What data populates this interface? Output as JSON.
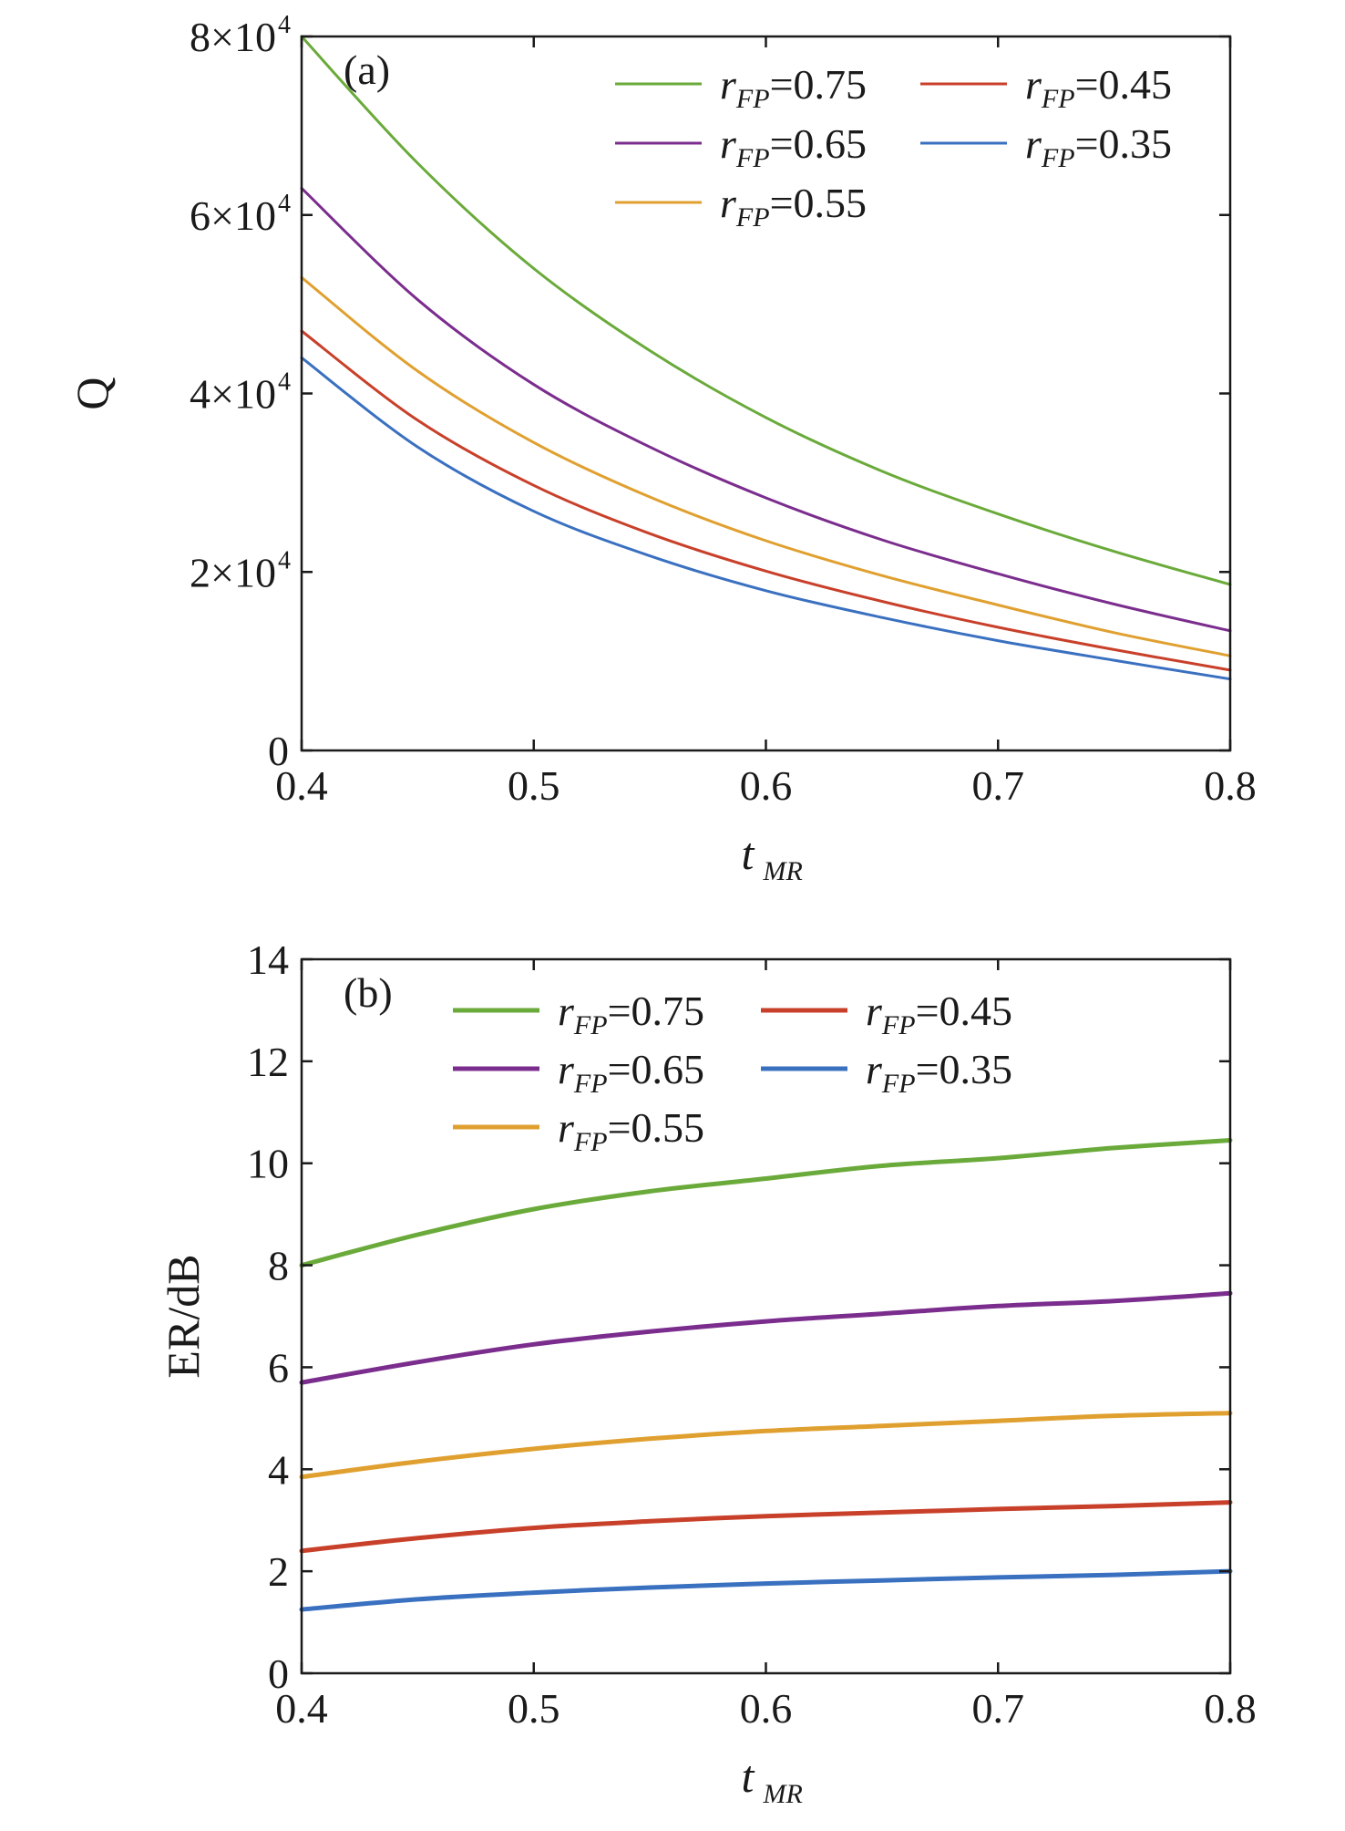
{
  "chart_data": [
    {
      "type": "line",
      "panel_label": "(a)",
      "xlabel": "t",
      "xlabel_sub": "MR",
      "ylabel": "Q",
      "xlim": [
        0.4,
        0.8
      ],
      "ylim": [
        0,
        80000
      ],
      "grid": false,
      "legend_position": "top-right",
      "x_ticks": [
        {
          "value": 0.4,
          "label": "0.4"
        },
        {
          "value": 0.5,
          "label": "0.5"
        },
        {
          "value": 0.6,
          "label": "0.6"
        },
        {
          "value": 0.7,
          "label": "0.7"
        },
        {
          "value": 0.8,
          "label": "0.8"
        }
      ],
      "y_ticks": [
        {
          "value": 0,
          "label": "0",
          "exp": ""
        },
        {
          "value": 20000,
          "label": "2×10",
          "exp": "4"
        },
        {
          "value": 40000,
          "label": "4×10",
          "exp": "4"
        },
        {
          "value": 60000,
          "label": "6×10",
          "exp": "4"
        },
        {
          "value": 80000,
          "label": "8×10",
          "exp": "4"
        }
      ],
      "x": [
        0.4,
        0.45,
        0.5,
        0.55,
        0.6,
        0.65,
        0.7,
        0.75,
        0.8
      ],
      "series": [
        {
          "name": "r",
          "name_sub": "FP",
          "name_value": "=0.75",
          "color": "#6aaa3a",
          "values": [
            80000,
            65800,
            54000,
            44800,
            37300,
            31300,
            26500,
            22300,
            18600
          ]
        },
        {
          "name": "r",
          "name_sub": "FP",
          "name_value": "=0.65",
          "color": "#7b2d8e",
          "values": [
            63000,
            50500,
            41000,
            34000,
            28300,
            23600,
            19800,
            16400,
            13400
          ]
        },
        {
          "name": "r",
          "name_sub": "FP",
          "name_value": "=0.55",
          "color": "#e0a030",
          "values": [
            53000,
            42500,
            34500,
            28400,
            23500,
            19600,
            16300,
            13200,
            10600
          ]
        },
        {
          "name": "r",
          "name_sub": "FP",
          "name_value": "=0.45",
          "color": "#c8402a",
          "values": [
            47000,
            37000,
            29700,
            24300,
            20100,
            16700,
            13800,
            11300,
            9000
          ]
        },
        {
          "name": "r",
          "name_sub": "FP",
          "name_value": "=0.35",
          "color": "#3a70c0",
          "values": [
            44000,
            34000,
            26800,
            21800,
            17900,
            14900,
            12300,
            10100,
            8000
          ]
        }
      ]
    },
    {
      "type": "line",
      "panel_label": "(b)",
      "xlabel": "t",
      "xlabel_sub": "MR",
      "ylabel": "ER/dB",
      "xlim": [
        0.4,
        0.8
      ],
      "ylim": [
        0,
        14
      ],
      "grid": false,
      "legend_position": "top-center",
      "x_ticks": [
        {
          "value": 0.4,
          "label": "0.4"
        },
        {
          "value": 0.5,
          "label": "0.5"
        },
        {
          "value": 0.6,
          "label": "0.6"
        },
        {
          "value": 0.7,
          "label": "0.7"
        },
        {
          "value": 0.8,
          "label": "0.8"
        }
      ],
      "y_ticks": [
        {
          "value": 0,
          "label": "0",
          "exp": ""
        },
        {
          "value": 2,
          "label": "2",
          "exp": ""
        },
        {
          "value": 4,
          "label": "4",
          "exp": ""
        },
        {
          "value": 6,
          "label": "6",
          "exp": ""
        },
        {
          "value": 8,
          "label": "8",
          "exp": ""
        },
        {
          "value": 10,
          "label": "10",
          "exp": ""
        },
        {
          "value": 12,
          "label": "12",
          "exp": ""
        },
        {
          "value": 14,
          "label": "14",
          "exp": ""
        }
      ],
      "x": [
        0.4,
        0.45,
        0.5,
        0.55,
        0.6,
        0.65,
        0.7,
        0.75,
        0.8
      ],
      "series": [
        {
          "name": "r",
          "name_sub": "FP",
          "name_value": "=0.75",
          "color": "#6aaa3a",
          "values": [
            8.0,
            8.6,
            9.1,
            9.45,
            9.7,
            9.95,
            10.1,
            10.3,
            10.45
          ]
        },
        {
          "name": "r",
          "name_sub": "FP",
          "name_value": "=0.65",
          "color": "#7b2d8e",
          "values": [
            5.7,
            6.1,
            6.45,
            6.7,
            6.9,
            7.05,
            7.2,
            7.3,
            7.45
          ]
        },
        {
          "name": "r",
          "name_sub": "FP",
          "name_value": "=0.55",
          "color": "#e0a030",
          "values": [
            3.85,
            4.15,
            4.4,
            4.6,
            4.75,
            4.85,
            4.95,
            5.05,
            5.1
          ]
        },
        {
          "name": "r",
          "name_sub": "FP",
          "name_value": "=0.45",
          "color": "#c8402a",
          "values": [
            2.4,
            2.65,
            2.85,
            2.98,
            3.08,
            3.15,
            3.22,
            3.28,
            3.35
          ]
        },
        {
          "name": "r",
          "name_sub": "FP",
          "name_value": "=0.35",
          "color": "#3a70c0",
          "values": [
            1.25,
            1.45,
            1.58,
            1.68,
            1.76,
            1.82,
            1.88,
            1.93,
            2.0
          ]
        }
      ]
    }
  ]
}
